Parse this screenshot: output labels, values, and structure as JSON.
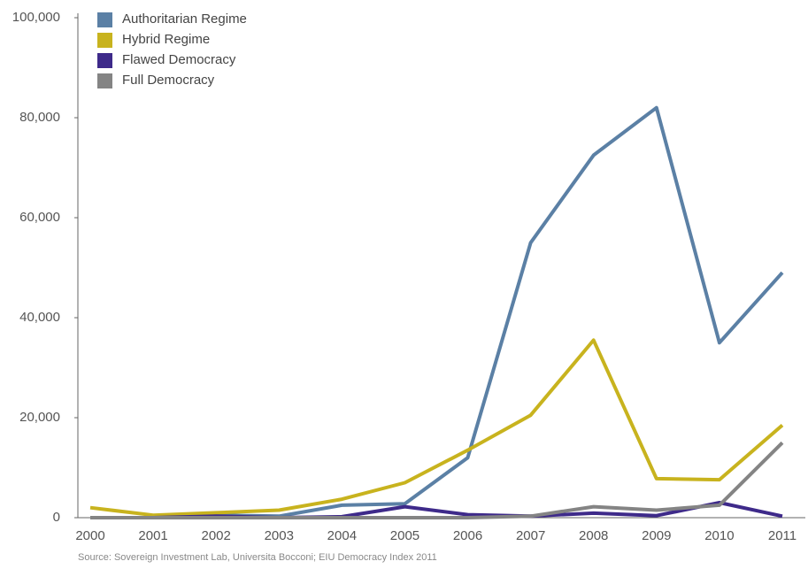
{
  "chart_data": {
    "type": "line",
    "categories": [
      "2000",
      "2001",
      "2002",
      "2003",
      "2004",
      "2005",
      "2006",
      "2007",
      "2008",
      "2009",
      "2010",
      "2011"
    ],
    "series": [
      {
        "name": "Authoritarian Regime",
        "color": "#5b80a5",
        "values": [
          0,
          0,
          500,
          300,
          2500,
          2800,
          12000,
          55000,
          72500,
          82000,
          35000,
          49000
        ]
      },
      {
        "name": "Hybrid Regime",
        "color": "#c8b31e",
        "values": [
          2000,
          500,
          1000,
          1500,
          3700,
          7000,
          13500,
          20500,
          35500,
          7800,
          7600,
          18500
        ]
      },
      {
        "name": "Flawed Democracy",
        "color": "#3e2a8a",
        "values": [
          0,
          0,
          300,
          0,
          200,
          2200,
          600,
          300,
          900,
          400,
          3000,
          300
        ]
      },
      {
        "name": "Full Democracy",
        "color": "#848484",
        "values": [
          0,
          0,
          0,
          0,
          0,
          0,
          0,
          300,
          2200,
          1500,
          2500,
          15000
        ]
      }
    ],
    "ylim": [
      0,
      100000
    ],
    "yticks": [
      0,
      {
        "value": 20000,
        "label": "20,000"
      },
      {
        "value": 40000,
        "label": "40,000"
      },
      {
        "value": 60000,
        "label": "60,000"
      },
      {
        "value": 80000,
        "label": "80,000"
      },
      {
        "value": 100000,
        "label": "100,000"
      }
    ],
    "source": "Source: Sovereign Investment Lab, Universita Bocconi; EIU Democracy Index 2011"
  }
}
